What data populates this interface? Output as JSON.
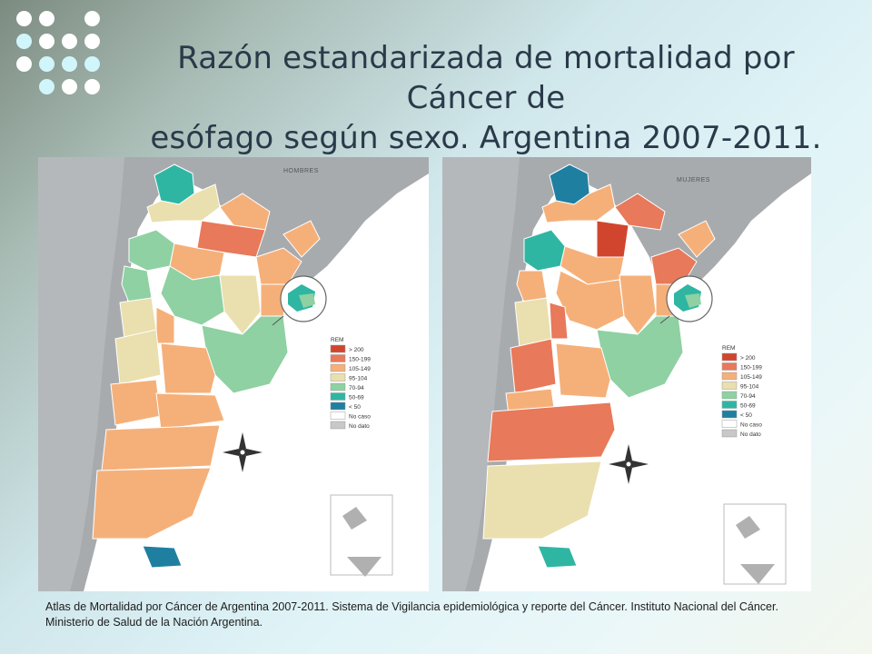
{
  "title": {
    "line1": "Razón estandarizada de mortalidad por Cáncer de",
    "line2": "esófago según sexo. Argentina 2007-2011."
  },
  "maps": [
    {
      "label": "HOMBRES"
    },
    {
      "label": "MUJERES"
    }
  ],
  "legend": {
    "title": "REM",
    "items": [
      {
        "label": "> 200",
        "color": "#d1452f"
      },
      {
        "label": "150-199",
        "color": "#e8795a"
      },
      {
        "label": "105-149",
        "color": "#f5b07a"
      },
      {
        "label": "95-104",
        "color": "#eadfae"
      },
      {
        "label": "70-94",
        "color": "#8fd1a2"
      },
      {
        "label": "50-69",
        "color": "#2fb6a3"
      },
      {
        "label": "< 50",
        "color": "#1f7fa1"
      },
      {
        "label": "No caso",
        "color": "#ffffff"
      },
      {
        "label": "No dato",
        "color": "#c8c8c8"
      }
    ]
  },
  "colors": {
    "accent_title": "#2a3a4a",
    "land_neighbors": "#a8abae",
    "sea": "#ffffff"
  },
  "caption": "Atlas de Mortalidad por Cáncer de Argentina 2007-2011. Sistema de Vigilancia epidemiológica y reporte del Cáncer. Instituto Nacional del Cáncer. Ministerio de Salud de la Nación Argentina."
}
